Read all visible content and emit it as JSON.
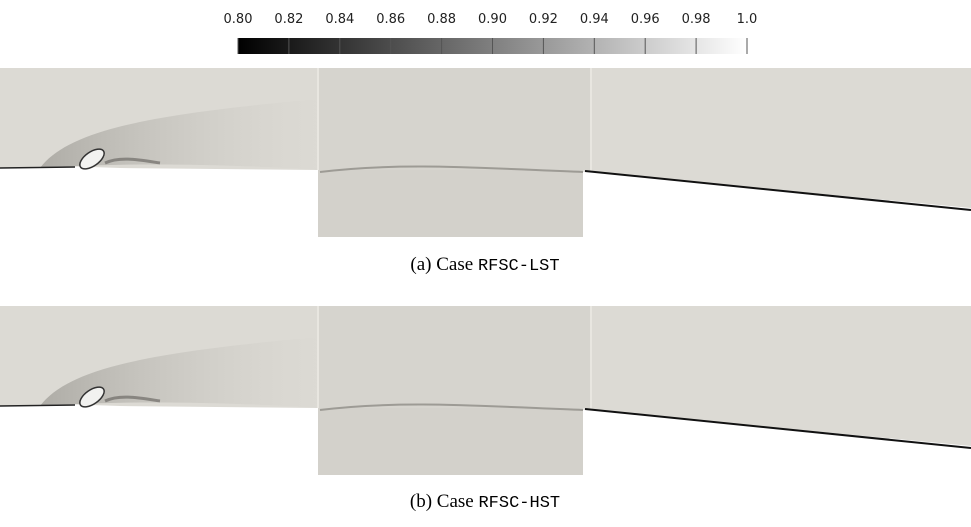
{
  "colorbar": {
    "range": [
      0.8,
      1.0
    ],
    "ticks": [
      {
        "value": 0.8,
        "label": "0.80"
      },
      0.82,
      0.84,
      0.86,
      0.88,
      {
        "value": 0.9,
        "label": "0.90"
      },
      0.92,
      0.94,
      0.96,
      0.98,
      {
        "value": 1.0,
        "label": "1.0"
      }
    ]
  },
  "panels": [
    {
      "prefix": "(a) Case",
      "code": "RFSC-LST"
    },
    {
      "prefix": "(b) Case",
      "code": "RFSC-HST"
    }
  ]
}
